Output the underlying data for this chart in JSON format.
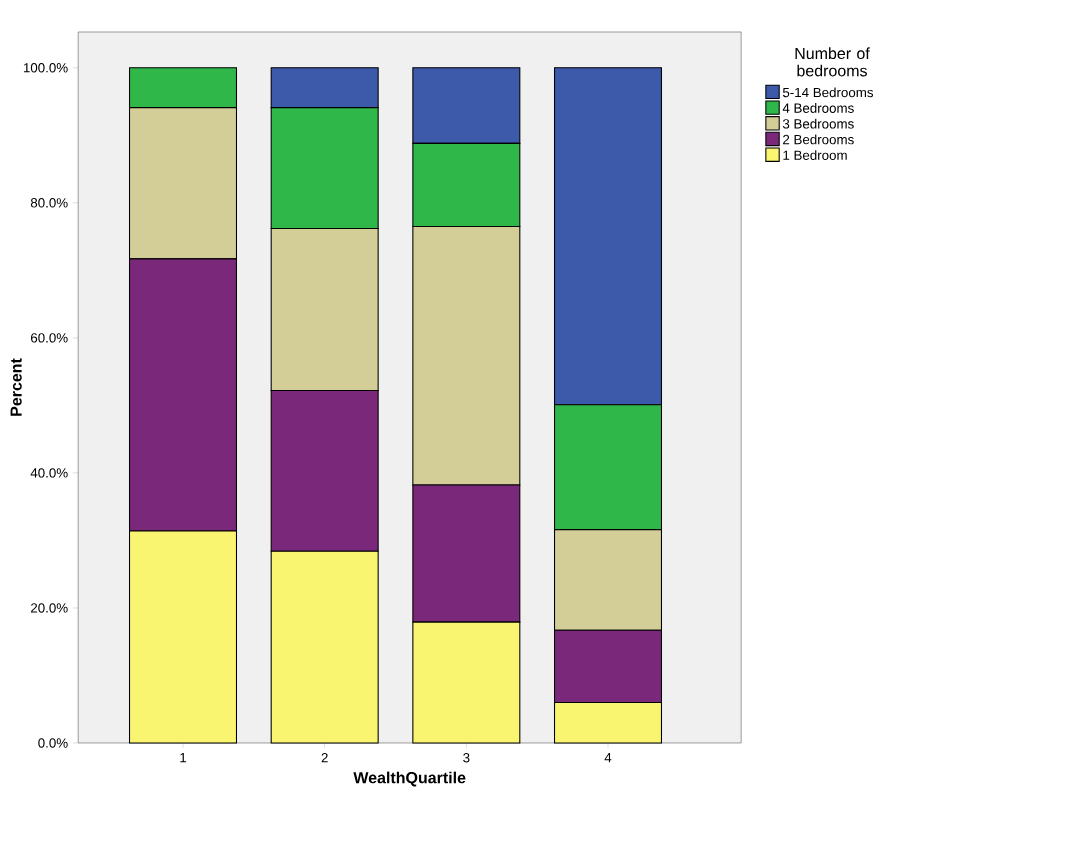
{
  "chart_data": {
    "type": "bar",
    "stacked": true,
    "xlabel": "WealthQuartile",
    "ylabel": "Percent",
    "legend_title": "Number of bedrooms",
    "legend": "top right",
    "categories": [
      "1",
      "2",
      "3",
      "4"
    ],
    "series": [
      {
        "name": "1 Bedroom",
        "color": "#f9f571",
        "values": [
          31.4,
          28.4,
          17.9,
          6.0
        ]
      },
      {
        "name": "2 Bedrooms",
        "color": "#7a287a",
        "values": [
          40.3,
          23.8,
          20.3,
          10.7
        ]
      },
      {
        "name": "3 Bedrooms",
        "color": "#d3cd98",
        "values": [
          22.4,
          24.0,
          38.3,
          14.9
        ]
      },
      {
        "name": "4 Bedrooms",
        "color": "#30b749",
        "values": [
          5.9,
          17.9,
          12.3,
          18.5
        ]
      },
      {
        "name": "5-14 Bedrooms",
        "color": "#3c59aa",
        "values": [
          0,
          5.9,
          11.2,
          49.9
        ]
      }
    ],
    "ylim": [
      0,
      105.3
    ],
    "yticks": [
      {
        "value": 0,
        "label": "0.0%"
      },
      {
        "value": 20,
        "label": "20.0%"
      },
      {
        "value": 40,
        "label": "40.0%"
      },
      {
        "value": 60,
        "label": "60.0%"
      },
      {
        "value": 80,
        "label": "80.0%"
      },
      {
        "value": 100,
        "label": "100.0%"
      }
    ]
  }
}
